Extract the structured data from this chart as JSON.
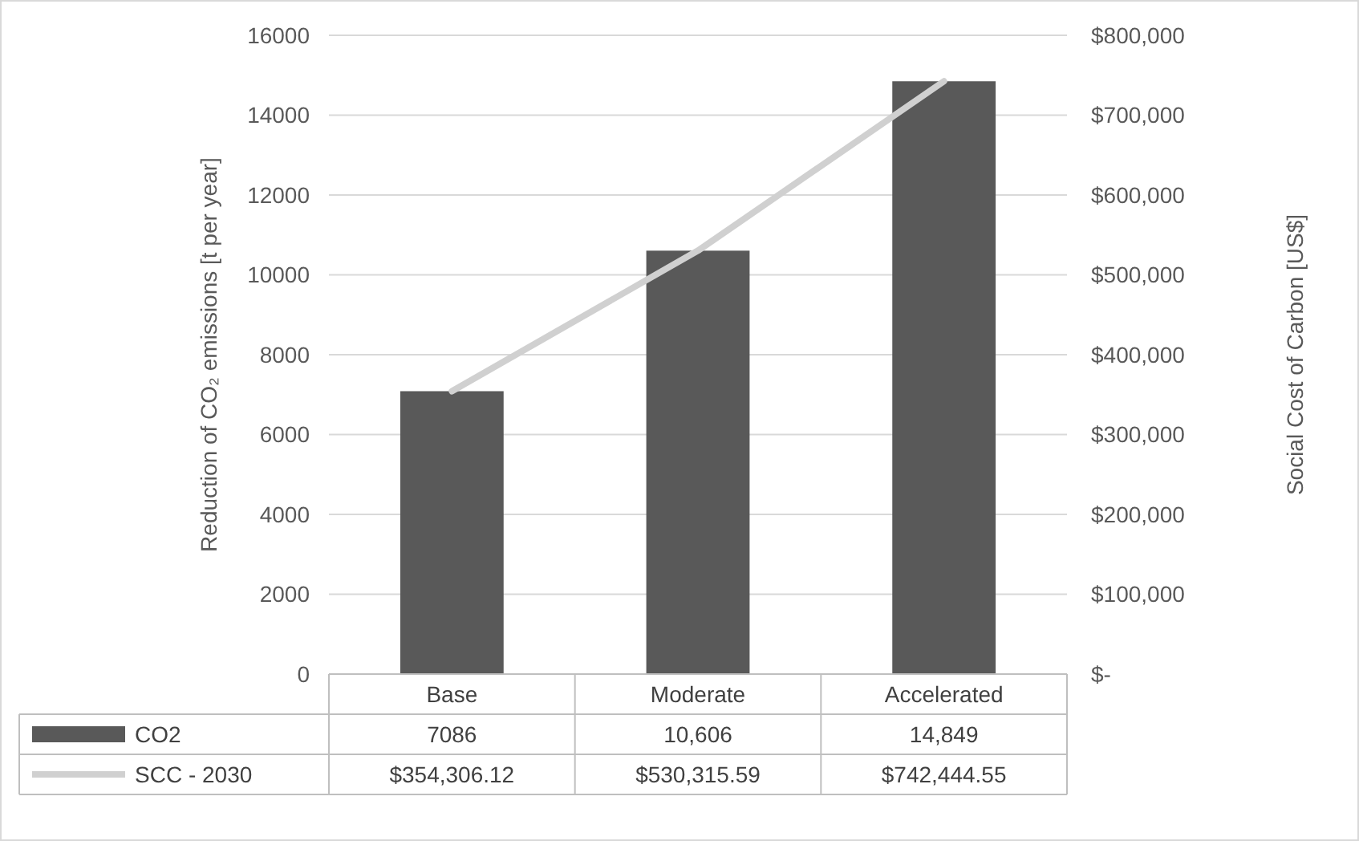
{
  "chart_data": {
    "type": "bar",
    "ylabel": "Reduction of CO₂ emissions [t per year]",
    "y2label": "Social Cost of Carbon [US$]",
    "categories": [
      "Base",
      "Moderate",
      "Accelerated"
    ],
    "series": [
      {
        "name": "CO2",
        "color": "#595959",
        "values": [
          7086,
          10606,
          14849
        ],
        "value_labels": [
          "7086",
          "10,606",
          "14,849"
        ]
      },
      {
        "name": "SCC - 2030",
        "type": "line",
        "axis": "y2",
        "color": "#d0d0d0",
        "values": [
          354306.12,
          530315.59,
          742444.55
        ],
        "value_labels": [
          "$354,306.12",
          "$530,315.59",
          "$742,444.55"
        ]
      }
    ],
    "ylim": [
      0,
      16000
    ],
    "yticks": [
      0,
      2000,
      4000,
      6000,
      8000,
      10000,
      12000,
      14000,
      16000
    ],
    "y2lim": [
      0,
      800000
    ],
    "y2ticks": [
      {
        "value": 0,
        "label": "$-"
      },
      {
        "value": 100000,
        "label": "$100,000"
      },
      {
        "value": 200000,
        "label": "$200,000"
      },
      {
        "value": 300000,
        "label": "$300,000"
      },
      {
        "value": 400000,
        "label": "$400,000"
      },
      {
        "value": 500000,
        "label": "$500,000"
      },
      {
        "value": 600000,
        "label": "$600,000"
      },
      {
        "value": 700000,
        "label": "$700,000"
      },
      {
        "value": 800000,
        "label": "$800,000"
      }
    ],
    "grid": "y",
    "legend": "bottom",
    "data_labels": true
  }
}
